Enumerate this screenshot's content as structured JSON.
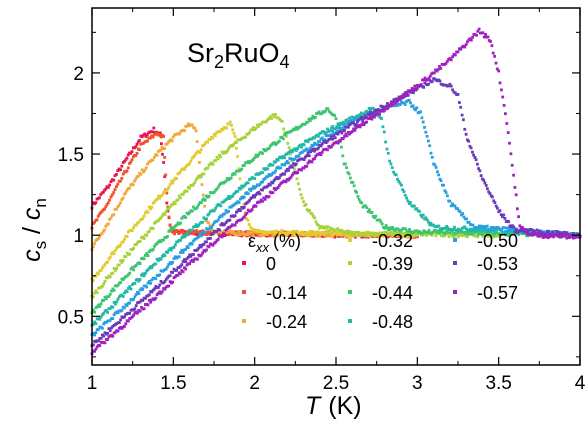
{
  "chart_data": {
    "type": "scatter",
    "title_main": "Sr",
    "title_sub1": "2",
    "title_mid": "RuO",
    "title_sub2": "4",
    "xlabel_var": "T",
    "xlabel_unit": "(K)",
    "ylabel_a": "c",
    "ylabel_a_sub": "s",
    "ylabel_sep": " / ",
    "ylabel_b": "c",
    "ylabel_b_sub": "n",
    "xlim": [
      1,
      4
    ],
    "ylim": [
      0.2,
      2.4
    ],
    "xticks": [
      1,
      1.5,
      2,
      2.5,
      3,
      3.5,
      4
    ],
    "xtick_labels": [
      "1",
      "1.5",
      "2",
      "2.5",
      "3",
      "3.5",
      "4"
    ],
    "yticks": [
      0.5,
      1,
      1.5,
      2
    ],
    "ytick_labels": [
      "0.5",
      "1",
      "1.5",
      "2"
    ],
    "legend_title_var": "ε",
    "legend_title_sub": "xx",
    "legend_title_unit": "(%)",
    "legend_placement": "bottom-center",
    "series": [
      {
        "name": "0",
        "color": "#e8144c",
        "points": [
          [
            1.0,
            1.18
          ],
          [
            1.1,
            1.3
          ],
          [
            1.2,
            1.45
          ],
          [
            1.3,
            1.6
          ],
          [
            1.38,
            1.65
          ],
          [
            1.42,
            1.62
          ],
          [
            1.44,
            1.45
          ],
          [
            1.46,
            1.2
          ],
          [
            1.48,
            1.06
          ],
          [
            1.5,
            1.02
          ],
          [
            1.8,
            1.01
          ],
          [
            2.5,
            1.0
          ],
          [
            3.0,
            1.0
          ]
        ]
      },
      {
        "name": "-0.14",
        "color": "#f0502a",
        "points": [
          [
            1.0,
            1.05
          ],
          [
            1.1,
            1.2
          ],
          [
            1.2,
            1.38
          ],
          [
            1.3,
            1.55
          ],
          [
            1.4,
            1.63
          ],
          [
            1.44,
            1.6
          ],
          [
            1.46,
            1.25
          ],
          [
            1.48,
            1.05
          ],
          [
            1.5,
            1.02
          ],
          [
            2.0,
            1.01
          ],
          [
            3.0,
            1.0
          ]
        ]
      },
      {
        "name": "-0.24",
        "color": "#f0a93a",
        "points": [
          [
            1.0,
            0.92
          ],
          [
            1.1,
            1.08
          ],
          [
            1.2,
            1.25
          ],
          [
            1.3,
            1.38
          ],
          [
            1.4,
            1.5
          ],
          [
            1.5,
            1.6
          ],
          [
            1.6,
            1.68
          ],
          [
            1.64,
            1.65
          ],
          [
            1.66,
            1.45
          ],
          [
            1.7,
            1.1
          ],
          [
            1.75,
            1.02
          ],
          [
            2.0,
            1.01
          ],
          [
            3.0,
            1.0
          ]
        ]
      },
      {
        "name": "-0.32",
        "color": "#e0cc30",
        "points": [
          [
            1.0,
            0.72
          ],
          [
            1.2,
            0.98
          ],
          [
            1.4,
            1.22
          ],
          [
            1.6,
            1.45
          ],
          [
            1.75,
            1.62
          ],
          [
            1.85,
            1.69
          ],
          [
            1.88,
            1.6
          ],
          [
            1.91,
            1.35
          ],
          [
            1.95,
            1.1
          ],
          [
            2.0,
            1.02
          ],
          [
            2.5,
            1.01
          ],
          [
            3.0,
            1.0
          ]
        ]
      },
      {
        "name": "-0.39",
        "color": "#a8d23a",
        "points": [
          [
            1.0,
            0.62
          ],
          [
            1.2,
            0.86
          ],
          [
            1.4,
            1.08
          ],
          [
            1.6,
            1.3
          ],
          [
            1.8,
            1.5
          ],
          [
            2.0,
            1.66
          ],
          [
            2.12,
            1.74
          ],
          [
            2.17,
            1.7
          ],
          [
            2.22,
            1.5
          ],
          [
            2.3,
            1.2
          ],
          [
            2.4,
            1.05
          ],
          [
            2.6,
            1.01
          ],
          [
            3.5,
            1.0
          ]
        ]
      },
      {
        "name": "-0.44",
        "color": "#3cc46e",
        "points": [
          [
            1.0,
            0.52
          ],
          [
            1.2,
            0.74
          ],
          [
            1.4,
            0.94
          ],
          [
            1.6,
            1.14
          ],
          [
            1.8,
            1.32
          ],
          [
            2.0,
            1.48
          ],
          [
            2.2,
            1.62
          ],
          [
            2.35,
            1.72
          ],
          [
            2.45,
            1.78
          ],
          [
            2.5,
            1.72
          ],
          [
            2.55,
            1.45
          ],
          [
            2.65,
            1.2
          ],
          [
            2.8,
            1.05
          ],
          [
            3.0,
            1.02
          ],
          [
            4.0,
            1.0
          ]
        ]
      },
      {
        "name": "-0.48",
        "color": "#22b8a8",
        "points": [
          [
            1.0,
            0.44
          ],
          [
            1.2,
            0.64
          ],
          [
            1.4,
            0.84
          ],
          [
            1.6,
            1.02
          ],
          [
            1.8,
            1.2
          ],
          [
            2.0,
            1.36
          ],
          [
            2.2,
            1.5
          ],
          [
            2.4,
            1.62
          ],
          [
            2.6,
            1.72
          ],
          [
            2.72,
            1.78
          ],
          [
            2.78,
            1.72
          ],
          [
            2.83,
            1.45
          ],
          [
            2.95,
            1.2
          ],
          [
            3.1,
            1.05
          ],
          [
            4.0,
            1.0
          ]
        ]
      },
      {
        "name": "-0.50",
        "color": "#28a0e0",
        "points": [
          [
            1.0,
            0.38
          ],
          [
            1.2,
            0.56
          ],
          [
            1.4,
            0.75
          ],
          [
            1.6,
            0.94
          ],
          [
            1.8,
            1.12
          ],
          [
            2.0,
            1.3
          ],
          [
            2.2,
            1.45
          ],
          [
            2.4,
            1.58
          ],
          [
            2.6,
            1.7
          ],
          [
            2.8,
            1.78
          ],
          [
            2.95,
            1.82
          ],
          [
            3.02,
            1.75
          ],
          [
            3.1,
            1.45
          ],
          [
            3.2,
            1.2
          ],
          [
            3.35,
            1.05
          ],
          [
            4.0,
            1.0
          ]
        ]
      },
      {
        "name": "-0.53",
        "color": "#6a3ab8",
        "points": [
          [
            1.0,
            0.32
          ],
          [
            1.2,
            0.5
          ],
          [
            1.4,
            0.68
          ],
          [
            1.6,
            0.87
          ],
          [
            1.8,
            1.06
          ],
          [
            2.0,
            1.24
          ],
          [
            2.2,
            1.4
          ],
          [
            2.4,
            1.55
          ],
          [
            2.6,
            1.68
          ],
          [
            2.8,
            1.8
          ],
          [
            3.0,
            1.9
          ],
          [
            3.1,
            1.96
          ],
          [
            3.2,
            1.92
          ],
          [
            3.25,
            1.86
          ],
          [
            3.3,
            1.62
          ],
          [
            3.4,
            1.35
          ],
          [
            3.5,
            1.15
          ],
          [
            3.6,
            1.03
          ],
          [
            4.0,
            1.0
          ]
        ]
      },
      {
        "name": "-0.57",
        "color": "#a020c0",
        "points": [
          [
            1.0,
            0.28
          ],
          [
            1.2,
            0.45
          ],
          [
            1.4,
            0.63
          ],
          [
            1.6,
            0.82
          ],
          [
            1.8,
            1.0
          ],
          [
            2.0,
            1.18
          ],
          [
            2.2,
            1.34
          ],
          [
            2.4,
            1.5
          ],
          [
            2.6,
            1.64
          ],
          [
            2.8,
            1.78
          ],
          [
            3.0,
            1.92
          ],
          [
            3.2,
            2.08
          ],
          [
            3.3,
            2.18
          ],
          [
            3.38,
            2.26
          ],
          [
            3.45,
            2.2
          ],
          [
            3.5,
            2.0
          ],
          [
            3.55,
            1.7
          ],
          [
            3.6,
            1.3
          ],
          [
            3.63,
            1.05
          ],
          [
            3.7,
            1.0
          ],
          [
            4.0,
            0.99
          ]
        ]
      }
    ]
  }
}
